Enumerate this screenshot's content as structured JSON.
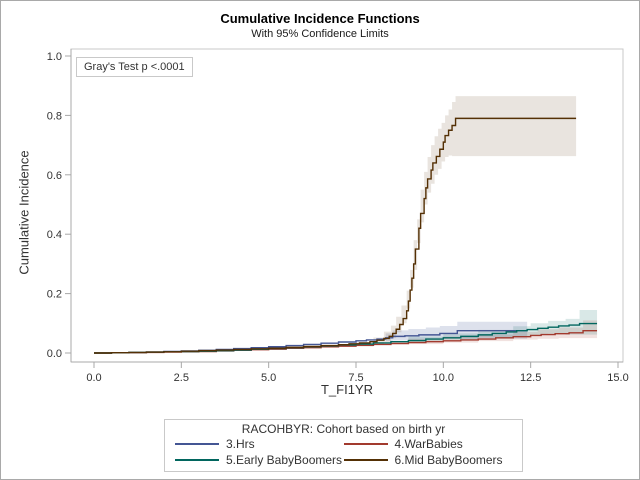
{
  "chart_data": {
    "type": "line",
    "subtype": "step-function-with-confidence-bands",
    "title": "Cumulative Incidence Functions",
    "subtitle": "With 95% Confidence Limits",
    "xlabel": "T_FI1YR",
    "ylabel": "Cumulative Incidence",
    "xlim": [
      0,
      15
    ],
    "ylim": [
      0,
      1.0
    ],
    "x_ticks": [
      0,
      2.5,
      5,
      7.5,
      10,
      12.5,
      15
    ],
    "x_tick_labels": [
      "0.0",
      "2.5",
      "5.0",
      "7.5",
      "10.0",
      "12.5",
      "15.0"
    ],
    "y_ticks": [
      0,
      0.2,
      0.4,
      0.6,
      0.8,
      1.0
    ],
    "y_tick_labels": [
      "0.0",
      "0.2",
      "0.4",
      "0.6",
      "0.8",
      "1.0"
    ],
    "gridlines": false,
    "annotation": "Gray's Test p <.0001",
    "legend_title": "RACOHBYR: Cohort based on birth yr",
    "legend_position": "bottom",
    "frame_color": "#c9c9c9",
    "axis_color": "#a8a8a8",
    "series": [
      {
        "name": "3.Hrs",
        "color": "#445694",
        "band_fill": "rgba(68,86,148,0.18)",
        "points": [
          [
            0,
            0
          ],
          [
            0.5,
            0.001
          ],
          [
            1,
            0.002
          ],
          [
            1.5,
            0.003
          ],
          [
            2,
            0.005
          ],
          [
            2.5,
            0.007
          ],
          [
            3,
            0.009
          ],
          [
            3.5,
            0.012
          ],
          [
            4,
            0.015
          ],
          [
            4.5,
            0.018
          ],
          [
            5,
            0.021
          ],
          [
            5.5,
            0.025
          ],
          [
            6,
            0.029
          ],
          [
            6.5,
            0.033
          ],
          [
            7,
            0.037
          ],
          [
            7.5,
            0.041
          ],
          [
            7.8,
            0.044
          ],
          [
            8.1,
            0.047
          ],
          [
            8.35,
            0.051
          ],
          [
            8.55,
            0.056
          ],
          [
            8.9,
            0.058
          ],
          [
            9.3,
            0.061
          ],
          [
            9.9,
            0.066
          ],
          [
            10.4,
            0.075
          ],
          [
            12.4,
            0.075
          ]
        ],
        "band": [
          [
            8.35,
            0.035,
            0.066
          ],
          [
            8.55,
            0.04,
            0.076
          ],
          [
            9,
            0.042,
            0.081
          ],
          [
            9.5,
            0.044,
            0.086
          ],
          [
            9.9,
            0.046,
            0.091
          ],
          [
            10.4,
            0.048,
            0.105
          ],
          [
            12.4,
            0.048,
            0.105
          ]
        ]
      },
      {
        "name": "4.WarBabies",
        "color": "#A23A2E",
        "band_fill": "rgba(162,58,46,0.15)",
        "points": [
          [
            0,
            0
          ],
          [
            0.5,
            0.001
          ],
          [
            1,
            0.001
          ],
          [
            1.5,
            0.002
          ],
          [
            2,
            0.003
          ],
          [
            2.5,
            0.004
          ],
          [
            3,
            0.005
          ],
          [
            3.5,
            0.007
          ],
          [
            4,
            0.009
          ],
          [
            4.5,
            0.011
          ],
          [
            5,
            0.013
          ],
          [
            5.5,
            0.016
          ],
          [
            6,
            0.018
          ],
          [
            6.5,
            0.021
          ],
          [
            7,
            0.023
          ],
          [
            7.5,
            0.026
          ],
          [
            8,
            0.029
          ],
          [
            8.5,
            0.032
          ],
          [
            9,
            0.035
          ],
          [
            9.5,
            0.038
          ],
          [
            10,
            0.041
          ],
          [
            10.5,
            0.044
          ],
          [
            11,
            0.047
          ],
          [
            11.5,
            0.051
          ],
          [
            12,
            0.055
          ],
          [
            12.5,
            0.059
          ],
          [
            12.8,
            0.062
          ],
          [
            13.2,
            0.065
          ],
          [
            13.6,
            0.068
          ],
          [
            14,
            0.075
          ],
          [
            14.4,
            0.075
          ]
        ],
        "band": [
          [
            9,
            0.025,
            0.048
          ],
          [
            10,
            0.03,
            0.055
          ],
          [
            11,
            0.035,
            0.062
          ],
          [
            12,
            0.04,
            0.071
          ],
          [
            12.7,
            0.045,
            0.08
          ],
          [
            13.3,
            0.048,
            0.086
          ],
          [
            14,
            0.05,
            0.11
          ],
          [
            14.4,
            0.05,
            0.11
          ]
        ]
      },
      {
        "name": "5.Early BabyBoomers",
        "color": "#01665E",
        "band_fill": "rgba(1,102,94,0.15)",
        "points": [
          [
            0,
            0
          ],
          [
            0.5,
            0.001
          ],
          [
            1,
            0.002
          ],
          [
            1.5,
            0.003
          ],
          [
            2,
            0.004
          ],
          [
            2.5,
            0.005
          ],
          [
            3,
            0.006
          ],
          [
            3.5,
            0.008
          ],
          [
            4,
            0.01
          ],
          [
            4.5,
            0.013
          ],
          [
            5,
            0.015
          ],
          [
            5.5,
            0.018
          ],
          [
            6,
            0.021
          ],
          [
            6.5,
            0.024
          ],
          [
            7,
            0.027
          ],
          [
            7.5,
            0.03
          ],
          [
            8,
            0.034
          ],
          [
            8.5,
            0.038
          ],
          [
            9,
            0.042
          ],
          [
            9.5,
            0.047
          ],
          [
            10,
            0.051
          ],
          [
            10.5,
            0.056
          ],
          [
            11,
            0.061
          ],
          [
            11.4,
            0.066
          ],
          [
            11.8,
            0.071
          ],
          [
            12.1,
            0.075
          ],
          [
            12.4,
            0.079
          ],
          [
            12.7,
            0.083
          ],
          [
            13,
            0.087
          ],
          [
            13.3,
            0.091
          ],
          [
            13.6,
            0.094
          ],
          [
            13.9,
            0.099
          ],
          [
            14.4,
            0.099
          ]
        ],
        "band": [
          [
            9,
            0.03,
            0.055
          ],
          [
            10,
            0.037,
            0.066
          ],
          [
            11,
            0.044,
            0.078
          ],
          [
            12,
            0.052,
            0.09
          ],
          [
            12.5,
            0.057,
            0.1
          ],
          [
            13,
            0.061,
            0.108
          ],
          [
            13.5,
            0.065,
            0.115
          ],
          [
            13.9,
            0.062,
            0.145
          ],
          [
            14.4,
            0.062,
            0.145
          ]
        ]
      },
      {
        "name": "6.Mid BabyBoomers",
        "color": "#543005",
        "band_fill": "rgba(84,48,5,0.13)",
        "points": [
          [
            0,
            0
          ],
          [
            0.5,
            0.001
          ],
          [
            1,
            0.002
          ],
          [
            1.5,
            0.003
          ],
          [
            2,
            0.004
          ],
          [
            2.5,
            0.006
          ],
          [
            3,
            0.008
          ],
          [
            3.5,
            0.01
          ],
          [
            4,
            0.012
          ],
          [
            4.5,
            0.014
          ],
          [
            5,
            0.016
          ],
          [
            5.5,
            0.019
          ],
          [
            6,
            0.022
          ],
          [
            6.5,
            0.025
          ],
          [
            7,
            0.028
          ],
          [
            7.3,
            0.031
          ],
          [
            7.6,
            0.034
          ],
          [
            7.9,
            0.038
          ],
          [
            8.1,
            0.043
          ],
          [
            8.3,
            0.049
          ],
          [
            8.45,
            0.056
          ],
          [
            8.55,
            0.066
          ],
          [
            8.65,
            0.08
          ],
          [
            8.75,
            0.096
          ],
          [
            8.85,
            0.116
          ],
          [
            8.95,
            0.142
          ],
          [
            9,
            0.175
          ],
          [
            9.05,
            0.212
          ],
          [
            9.1,
            0.252
          ],
          [
            9.15,
            0.3
          ],
          [
            9.2,
            0.35
          ],
          [
            9.3,
            0.42
          ],
          [
            9.35,
            0.47
          ],
          [
            9.45,
            0.52
          ],
          [
            9.5,
            0.556
          ],
          [
            9.55,
            0.586
          ],
          [
            9.65,
            0.616
          ],
          [
            9.7,
            0.64
          ],
          [
            9.8,
            0.662
          ],
          [
            9.9,
            0.686
          ],
          [
            10,
            0.71
          ],
          [
            10.05,
            0.732
          ],
          [
            10.15,
            0.75
          ],
          [
            10.25,
            0.766
          ],
          [
            10.35,
            0.79
          ],
          [
            13.8,
            0.79
          ]
        ],
        "band": [
          [
            7.5,
            0.016,
            0.036
          ],
          [
            8,
            0.022,
            0.052
          ],
          [
            8.3,
            0.03,
            0.072
          ],
          [
            8.5,
            0.036,
            0.092
          ],
          [
            8.65,
            0.05,
            0.122
          ],
          [
            8.8,
            0.07,
            0.16
          ],
          [
            8.95,
            0.1,
            0.21
          ],
          [
            9.05,
            0.15,
            0.28
          ],
          [
            9.15,
            0.22,
            0.38
          ],
          [
            9.25,
            0.28,
            0.45
          ],
          [
            9.35,
            0.37,
            0.55
          ],
          [
            9.45,
            0.44,
            0.61
          ],
          [
            9.55,
            0.5,
            0.66
          ],
          [
            9.65,
            0.54,
            0.7
          ],
          [
            9.75,
            0.57,
            0.73
          ],
          [
            9.85,
            0.6,
            0.755
          ],
          [
            9.95,
            0.62,
            0.775
          ],
          [
            10.05,
            0.645,
            0.8
          ],
          [
            10.15,
            0.66,
            0.82
          ],
          [
            10.25,
            0.665,
            0.845
          ],
          [
            10.35,
            0.663,
            0.865
          ],
          [
            13.8,
            0.663,
            0.865
          ]
        ]
      }
    ]
  }
}
